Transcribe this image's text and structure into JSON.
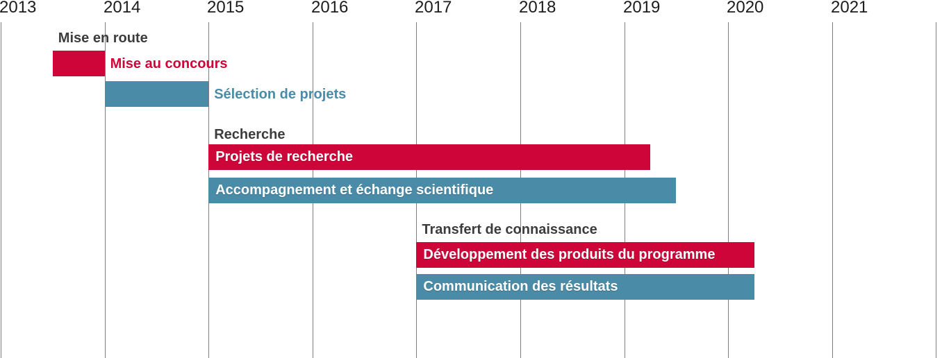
{
  "colors": {
    "red": "#ce0538",
    "blue": "#4a8ca8",
    "grid": "#7f7f7f",
    "header_text": "#3c3c3c",
    "year_text": "#1c1c1c",
    "bar_label_text": "#ffffff"
  },
  "chart_data": {
    "type": "bar",
    "subtype": "gantt-timeline",
    "title": "",
    "xlabel": "",
    "ylabel": "",
    "x_axis": {
      "unit": "year",
      "tick_labels": [
        "2013",
        "2014",
        "2015",
        "2016",
        "2017",
        "2018",
        "2019",
        "2020",
        "2021"
      ],
      "range": [
        2013,
        2022
      ],
      "gridlines": true
    },
    "legend": null,
    "sections": [
      {
        "header": "Mise en route",
        "tasks": [
          {
            "label": "Mise au concours",
            "start": 2013.5,
            "end": 2014.0,
            "color": "red",
            "label_position": "outside"
          },
          {
            "label": "Sélection de projets",
            "start": 2014.0,
            "end": 2015.0,
            "color": "blue",
            "label_position": "outside"
          }
        ]
      },
      {
        "header": "Recherche",
        "tasks": [
          {
            "label": "Projets de recherche",
            "start": 2015.0,
            "end": 2019.25,
            "color": "red",
            "label_position": "inside"
          },
          {
            "label": "Accompagnement et échange scientifique",
            "start": 2015.0,
            "end": 2019.5,
            "color": "blue",
            "label_position": "inside"
          }
        ]
      },
      {
        "header": "Transfert de connaissance",
        "tasks": [
          {
            "label": "Développement des produits du programme",
            "start": 2017.0,
            "end": 2020.25,
            "color": "red",
            "label_position": "inside"
          },
          {
            "label": "Communication des résultats",
            "start": 2017.0,
            "end": 2020.25,
            "color": "blue",
            "label_position": "inside"
          }
        ]
      }
    ]
  }
}
